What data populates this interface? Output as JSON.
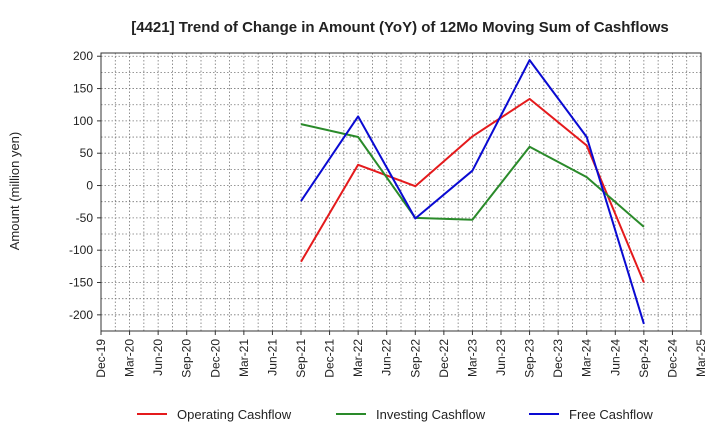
{
  "chart_data": {
    "type": "line",
    "title": "[4421]  Trend of Change in Amount (YoY) of 12Mo Moving Sum of Cashflows",
    "xlabel": "",
    "ylabel": "Amount (million yen)",
    "ylim": [
      -225,
      205
    ],
    "yticks": [
      200,
      150,
      100,
      50,
      0,
      -50,
      -100,
      -150,
      -200
    ],
    "categories": [
      "Dec-19",
      "Mar-20",
      "Jun-20",
      "Sep-20",
      "Dec-20",
      "Mar-21",
      "Jun-21",
      "Sep-21",
      "Dec-21",
      "Mar-22",
      "Jun-22",
      "Sep-22",
      "Dec-22",
      "Mar-23",
      "Jun-23",
      "Sep-23",
      "Dec-23",
      "Mar-24",
      "Jun-24",
      "Sep-24",
      "Dec-24",
      "Mar-25"
    ],
    "grid": true,
    "legend_position": "bottom",
    "series": [
      {
        "name": "Operating Cashflow",
        "color": "#e41a1c",
        "values": [
          null,
          null,
          null,
          null,
          null,
          null,
          null,
          -118,
          null,
          32,
          null,
          -1,
          null,
          76,
          null,
          134,
          null,
          62,
          null,
          -150,
          null,
          null
        ]
      },
      {
        "name": "Investing Cashflow",
        "color": "#2a8a2a",
        "values": [
          null,
          null,
          null,
          null,
          null,
          null,
          null,
          95,
          null,
          75,
          null,
          -50,
          null,
          -53,
          null,
          60,
          null,
          13,
          null,
          -64,
          null,
          null
        ]
      },
      {
        "name": "Free Cashflow",
        "color": "#0a0ad2",
        "values": [
          null,
          null,
          null,
          null,
          null,
          null,
          null,
          -24,
          null,
          107,
          null,
          -51,
          null,
          23,
          null,
          194,
          null,
          75,
          null,
          -214,
          null,
          null
        ]
      }
    ]
  }
}
